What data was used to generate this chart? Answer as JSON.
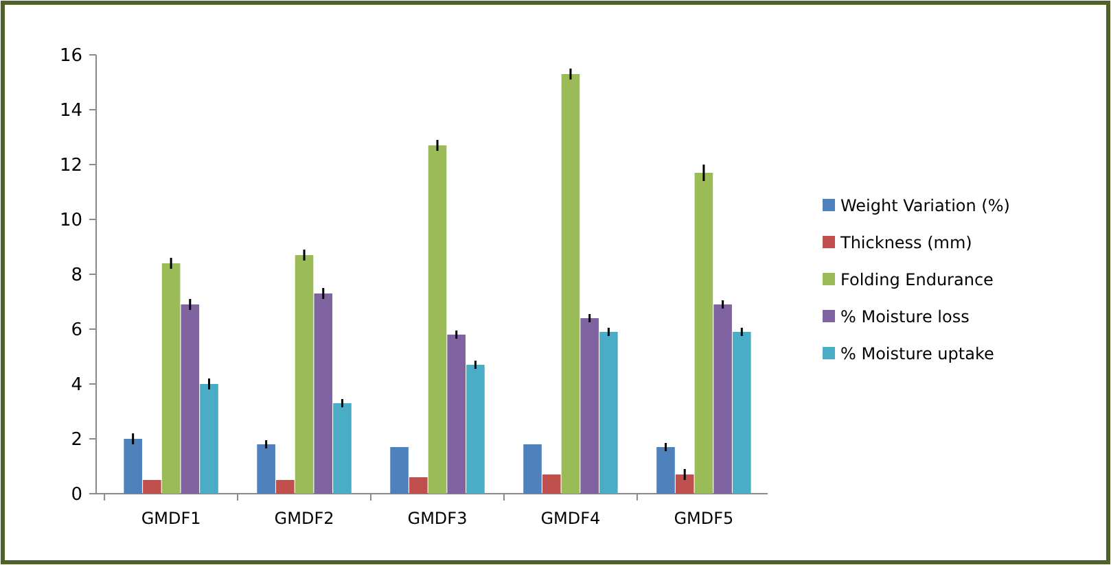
{
  "chart_data": {
    "type": "bar",
    "categories": [
      "GMDF1",
      "GMDF2",
      "GMDF3",
      "GMDF4",
      "GMDF5"
    ],
    "ylim": [
      0,
      16
    ],
    "yticks": [
      0,
      2,
      4,
      6,
      8,
      10,
      12,
      14,
      16
    ],
    "legend": "right",
    "grid": false,
    "series": [
      {
        "name": "Weight Variation  (%)",
        "color": "#4f81bd",
        "values": [
          2.0,
          1.8,
          1.7,
          1.8,
          1.7
        ],
        "errors": [
          0.2,
          0.15,
          null,
          null,
          0.15
        ]
      },
      {
        "name": "Thickness (mm)",
        "color": "#c0504d",
        "values": [
          0.5,
          0.5,
          0.6,
          0.7,
          0.7
        ],
        "errors": [
          null,
          null,
          null,
          null,
          0.2
        ]
      },
      {
        "name": "Folding Endurance",
        "color": "#9bbb59",
        "values": [
          8.4,
          8.7,
          12.7,
          15.3,
          11.7
        ],
        "errors": [
          0.2,
          0.2,
          0.2,
          0.2,
          0.3
        ]
      },
      {
        "name": "% Moisture loss",
        "color": "#8064a2",
        "values": [
          6.9,
          7.3,
          5.8,
          6.4,
          6.9
        ],
        "errors": [
          0.2,
          0.2,
          0.15,
          0.15,
          0.15
        ]
      },
      {
        "name": "% Moisture uptake",
        "color": "#4bacc6",
        "values": [
          4.0,
          3.3,
          4.7,
          5.9,
          5.9
        ],
        "errors": [
          0.2,
          0.15,
          0.15,
          0.15,
          0.15
        ]
      }
    ]
  }
}
